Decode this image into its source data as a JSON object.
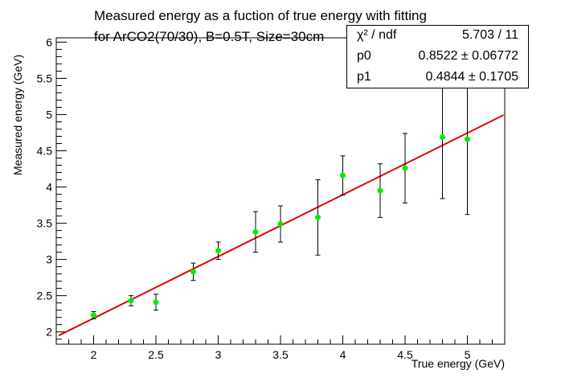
{
  "title": {
    "line1": "Measured energy as a fuction of true energy with fitting",
    "line2": "for ArCO2(70/30), B=0.5T, Size=30cm"
  },
  "stats": {
    "rows": [
      {
        "label": "χ² / ndf",
        "value": "5.703 / 11"
      },
      {
        "label": "p0",
        "value": "0.8522 ± 0.06772"
      },
      {
        "label": "p1",
        "value": "0.4844 ± 0.1705"
      }
    ]
  },
  "colors": {
    "points": "#00ee00",
    "fit": "#e00000",
    "errorbars": "#000000"
  },
  "chart_data": {
    "type": "scatter",
    "title": "Measured energy as a fuction of true energy with fitting for ArCO2(70/30), B=0.5T, Size=30cm",
    "xlabel": "True energy (GeV)",
    "ylabel": "Measured energy (GeV)",
    "xlim": [
      1.7,
      5.3
    ],
    "ylim": [
      1.83,
      6.06
    ],
    "xticks": [
      2,
      2.5,
      3,
      3.5,
      4,
      4.5,
      5
    ],
    "xtick_labels": [
      "2",
      "2.5",
      "3",
      "3.5",
      "4",
      "4.5",
      "5"
    ],
    "yticks": [
      2,
      2.5,
      3,
      3.5,
      4,
      4.5,
      5,
      5.5,
      6
    ],
    "ytick_labels": [
      "2",
      "2.5",
      "3",
      "3.5",
      "4",
      "4.5",
      "5",
      "5.5",
      "6"
    ],
    "grid": false,
    "points": [
      {
        "x": 2.0,
        "y": 2.23,
        "err": 0.05
      },
      {
        "x": 2.3,
        "y": 2.43,
        "err": 0.07
      },
      {
        "x": 2.5,
        "y": 2.41,
        "err": 0.11
      },
      {
        "x": 2.8,
        "y": 2.83,
        "err": 0.12
      },
      {
        "x": 3.0,
        "y": 3.12,
        "err": 0.12
      },
      {
        "x": 3.3,
        "y": 3.38,
        "err": 0.28
      },
      {
        "x": 3.5,
        "y": 3.49,
        "err": 0.25
      },
      {
        "x": 3.8,
        "y": 3.58,
        "err": 0.52
      },
      {
        "x": 4.0,
        "y": 4.16,
        "err": 0.27
      },
      {
        "x": 4.3,
        "y": 3.95,
        "err": 0.37
      },
      {
        "x": 4.5,
        "y": 4.26,
        "err": 0.48
      },
      {
        "x": 4.8,
        "y": 4.69,
        "err": 0.85
      },
      {
        "x": 5.0,
        "y": 4.66,
        "err": 1.04
      }
    ],
    "fit": {
      "x_from": 1.72,
      "x_to": 5.29
    }
  }
}
